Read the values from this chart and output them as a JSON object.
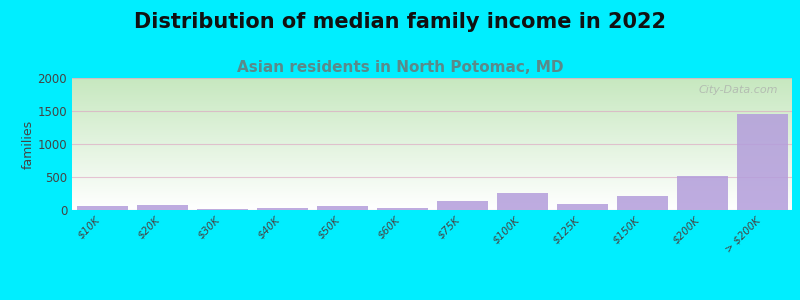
{
  "title": "Distribution of median family income in 2022",
  "subtitle": "Asian residents in North Potomac, MD",
  "categories": [
    "$10K",
    "$20K",
    "$30K",
    "$40K",
    "$50K",
    "$60K",
    "$75K",
    "$100K",
    "$125K",
    "$150K",
    "$200K",
    "> $200K"
  ],
  "values": [
    55,
    80,
    20,
    25,
    60,
    30,
    130,
    255,
    85,
    210,
    510,
    1450
  ],
  "bar_color": "#b39ddb",
  "bar_alpha": 0.85,
  "background_outer": "#00eeff",
  "title_fontsize": 15,
  "subtitle_fontsize": 11,
  "subtitle_color": "#5a8a8a",
  "title_color": "#111111",
  "ylabel": "families",
  "ylim": [
    0,
    2000
  ],
  "yticks": [
    0,
    500,
    1000,
    1500,
    2000
  ],
  "grid_color": "#dda0c0",
  "grid_alpha": 0.6,
  "watermark": "City-Data.com",
  "watermark_color": "#aaaaaa",
  "gradient_top": "#f8fcf8",
  "gradient_bottom": "#c8e8c0"
}
